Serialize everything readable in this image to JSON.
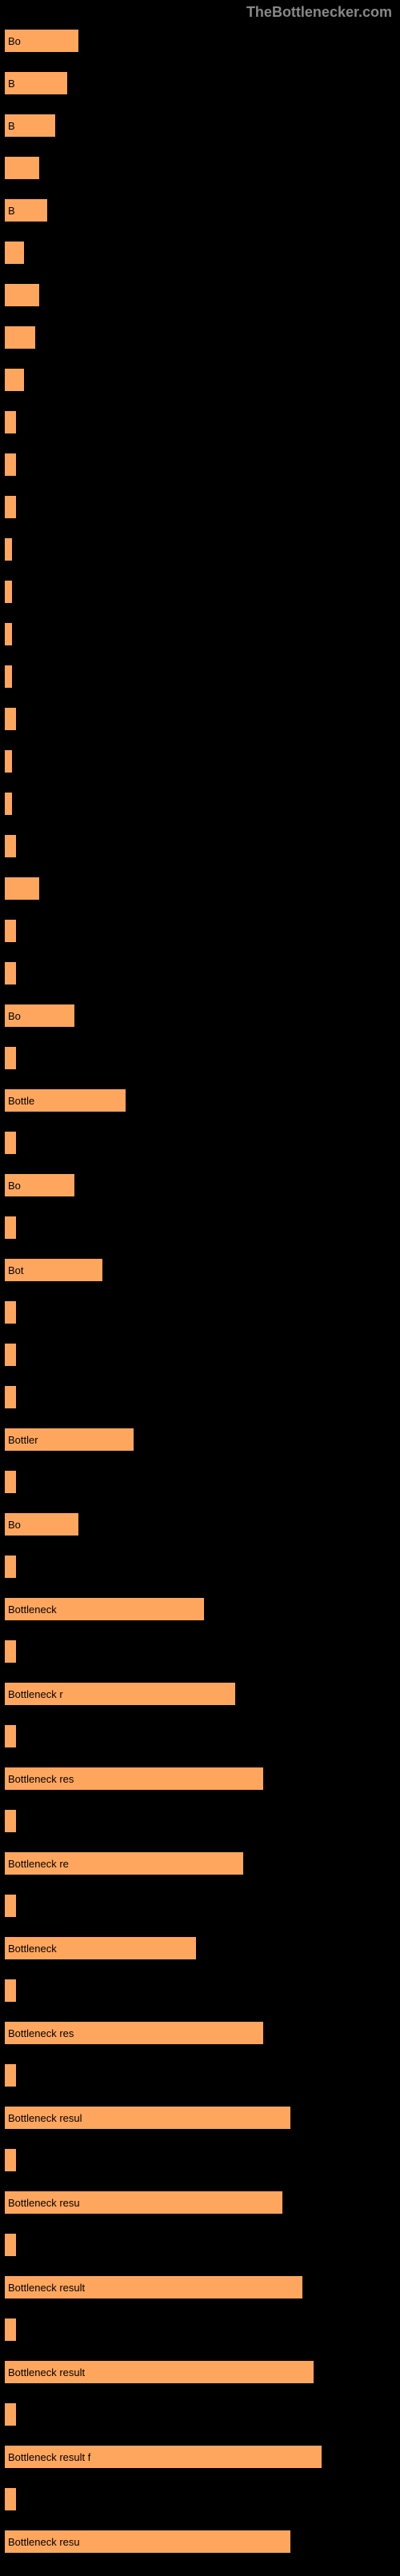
{
  "header": "TheBottlenecker.com",
  "bar_color": "#ffa65e",
  "background_color": "#000000",
  "text_color": "#ffffff",
  "label_text": "Bottleneck result",
  "bars": [
    {
      "width": 18,
      "label": "Bo"
    },
    {
      "width": 15,
      "label": "B"
    },
    {
      "width": 12,
      "label": "B"
    },
    {
      "width": 8,
      "label": ""
    },
    {
      "width": 10,
      "label": "B"
    },
    {
      "width": 4,
      "label": ""
    },
    {
      "width": 8,
      "label": ""
    },
    {
      "width": 7,
      "label": ""
    },
    {
      "width": 4,
      "label": ""
    },
    {
      "width": 2,
      "label": ""
    },
    {
      "width": 2,
      "label": ""
    },
    {
      "width": 2,
      "label": ""
    },
    {
      "width": 1,
      "label": ""
    },
    {
      "width": 1,
      "label": ""
    },
    {
      "width": 1,
      "label": ""
    },
    {
      "width": 1,
      "label": ""
    },
    {
      "width": 2,
      "label": ""
    },
    {
      "width": 1,
      "label": ""
    },
    {
      "width": 1,
      "label": ""
    },
    {
      "width": 2,
      "label": ""
    },
    {
      "width": 8,
      "label": ""
    },
    {
      "width": 2,
      "label": ""
    },
    {
      "width": 2,
      "label": ""
    },
    {
      "width": 17,
      "label": "Bo"
    },
    {
      "width": 2,
      "label": ""
    },
    {
      "width": 30,
      "label": "Bottle"
    },
    {
      "width": 2,
      "label": ""
    },
    {
      "width": 17,
      "label": "Bo"
    },
    {
      "width": 2,
      "label": ""
    },
    {
      "width": 24,
      "label": "Bot"
    },
    {
      "width": 2,
      "label": ""
    },
    {
      "width": 2,
      "label": ""
    },
    {
      "width": 2,
      "label": ""
    },
    {
      "width": 32,
      "label": "Bottler"
    },
    {
      "width": 2,
      "label": ""
    },
    {
      "width": 18,
      "label": "Bo"
    },
    {
      "width": 2,
      "label": ""
    },
    {
      "width": 50,
      "label": "Bottleneck"
    },
    {
      "width": 2,
      "label": ""
    },
    {
      "width": 58,
      "label": "Bottleneck r"
    },
    {
      "width": 2,
      "label": ""
    },
    {
      "width": 65,
      "label": "Bottleneck res"
    },
    {
      "width": 2,
      "label": ""
    },
    {
      "width": 60,
      "label": "Bottleneck re"
    },
    {
      "width": 2,
      "label": ""
    },
    {
      "width": 48,
      "label": "Bottleneck"
    },
    {
      "width": 2,
      "label": ""
    },
    {
      "width": 65,
      "label": "Bottleneck res"
    },
    {
      "width": 2,
      "label": ""
    },
    {
      "width": 72,
      "label": "Bottleneck resul"
    },
    {
      "width": 2,
      "label": ""
    },
    {
      "width": 70,
      "label": "Bottleneck resu"
    },
    {
      "width": 2,
      "label": ""
    },
    {
      "width": 75,
      "label": "Bottleneck result"
    },
    {
      "width": 2,
      "label": ""
    },
    {
      "width": 78,
      "label": "Bottleneck result"
    },
    {
      "width": 2,
      "label": ""
    },
    {
      "width": 80,
      "label": "Bottleneck result f"
    },
    {
      "width": 2,
      "label": ""
    },
    {
      "width": 72,
      "label": "Bottleneck resu"
    }
  ]
}
